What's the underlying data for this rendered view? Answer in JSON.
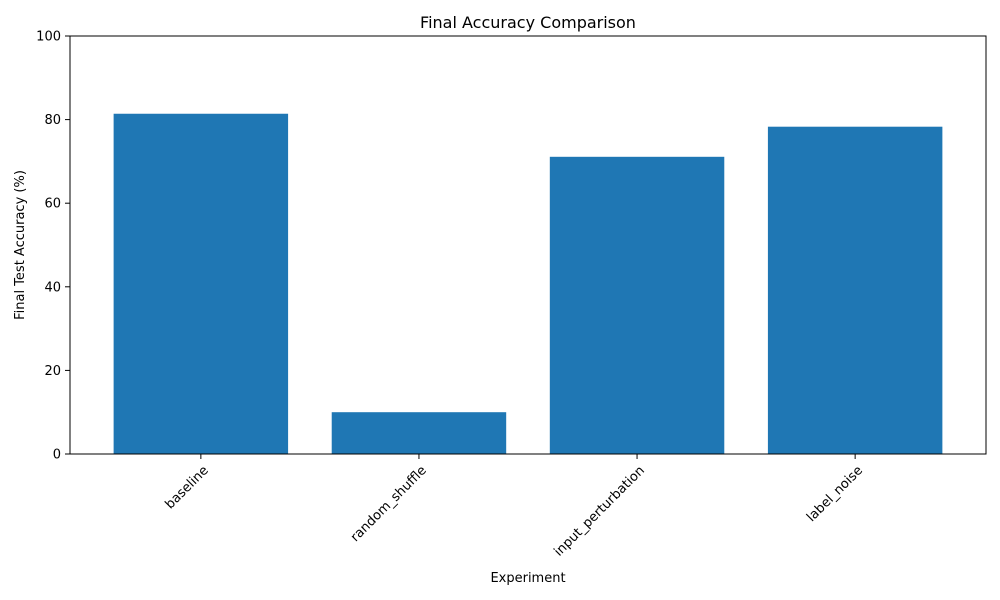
{
  "chart_data": {
    "type": "bar",
    "title": "Final Accuracy Comparison",
    "xlabel": "Experiment",
    "ylabel": "Final Test Accuracy (%)",
    "categories": [
      "baseline",
      "random_shuffle",
      "input_perturbation",
      "label_noise"
    ],
    "values": [
      81.4,
      10.0,
      71.1,
      78.3
    ],
    "ylim": [
      0,
      100
    ],
    "yticks": [
      0,
      20,
      40,
      60,
      80,
      100
    ],
    "bar_color": "#1f77b4",
    "grid": false,
    "legend": "none"
  }
}
